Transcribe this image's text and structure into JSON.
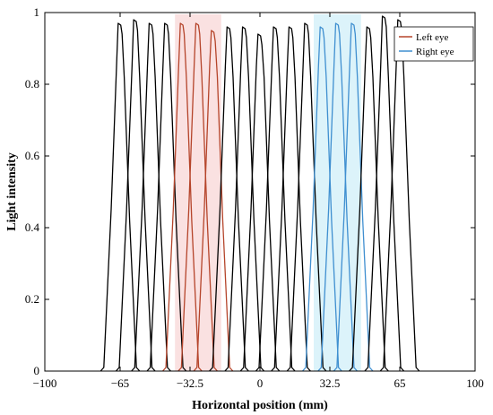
{
  "chart_data": {
    "type": "line",
    "title": "",
    "xlabel": "Horizontal position (mm)",
    "ylabel": "Light intensity",
    "xlim": [
      -100,
      100
    ],
    "ylim": [
      0,
      1
    ],
    "xticks": [
      -100,
      -65,
      -32.5,
      0,
      32.5,
      65,
      100
    ],
    "xtick_labels": [
      "−100",
      "−65",
      "−32.5",
      "0",
      "32.5",
      "65",
      "100"
    ],
    "yticks": [
      0,
      0.2,
      0.4,
      0.6,
      0.8,
      1
    ],
    "ytick_labels": [
      "0",
      "0.2",
      "0.4",
      "0.6",
      "0.8",
      "1"
    ],
    "grid": false,
    "legend_position": "top-right",
    "colors": {
      "left_eye": "#b5442a",
      "right_eye": "#3f8fd0",
      "other": "#000000",
      "left_band": "#f6c9c9",
      "right_band": "#bfeaf6"
    },
    "series": [
      {
        "name": "",
        "center": -65,
        "peak": 0.97
      },
      {
        "name": "",
        "center": -57.8,
        "peak": 0.98
      },
      {
        "name": "",
        "center": -50.6,
        "peak": 0.97
      },
      {
        "name": "",
        "center": -43.4,
        "peak": 0.97
      },
      {
        "name": "",
        "center": -36.1,
        "peak": 0.97
      },
      {
        "name": "Left eye",
        "center": -28.9,
        "peak": 0.97
      },
      {
        "name": "",
        "center": -21.7,
        "peak": 0.95
      },
      {
        "name": "",
        "center": -14.4,
        "peak": 0.96
      },
      {
        "name": "",
        "center": -7.2,
        "peak": 0.96
      },
      {
        "name": "",
        "center": 0,
        "peak": 0.94
      },
      {
        "name": "",
        "center": 7.2,
        "peak": 0.96
      },
      {
        "name": "",
        "center": 14.4,
        "peak": 0.96
      },
      {
        "name": "",
        "center": 21.7,
        "peak": 0.97
      },
      {
        "name": "",
        "center": 28.9,
        "peak": 0.96
      },
      {
        "name": "",
        "center": 36.1,
        "peak": 0.97
      },
      {
        "name": "Right eye",
        "center": 43.4,
        "peak": 0.97
      },
      {
        "name": "",
        "center": 50.6,
        "peak": 0.96
      },
      {
        "name": "",
        "center": 57.8,
        "peak": 0.99
      },
      {
        "name": "",
        "center": 65,
        "peak": 0.98
      }
    ],
    "left_eye_curves": [
      -36.1,
      -28.9,
      -21.7
    ],
    "right_eye_curves": [
      28.9,
      36.1,
      43.4
    ],
    "left_eye_band": [
      -39.5,
      -18
    ],
    "right_eye_band": [
      25,
      47
    ],
    "legend": [
      "Left eye",
      "Right eye"
    ]
  }
}
